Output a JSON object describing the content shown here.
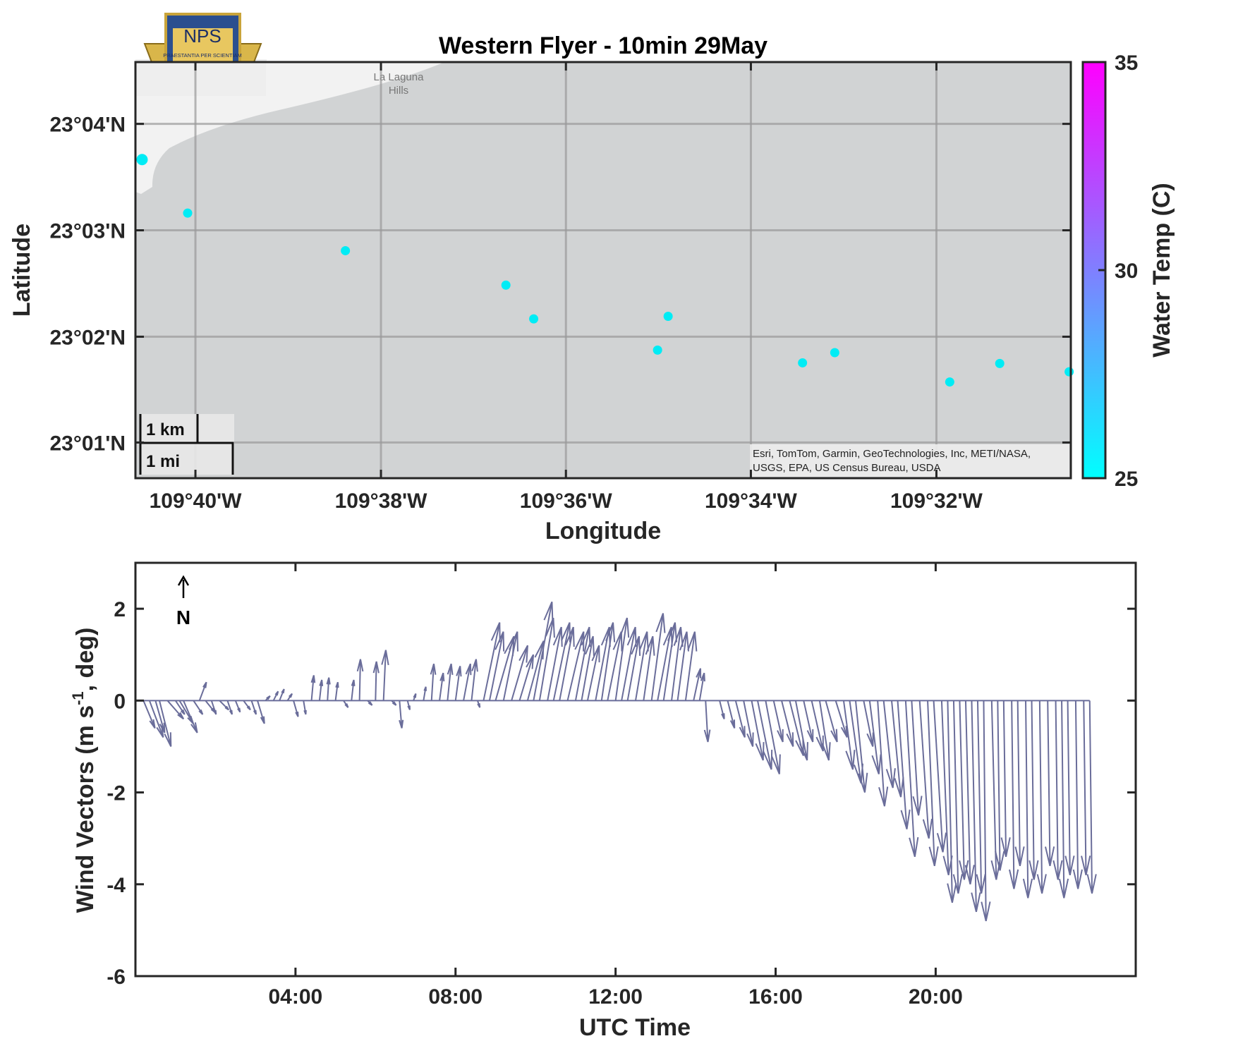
{
  "colors": {
    "map_bg": "#d1d3d4",
    "land": "#f2f2f2",
    "grid": "#9a9a9a",
    "point": "#00ecf5",
    "vector": "#6a6d9a",
    "colormap_low": "#00ffff",
    "colormap_high": "#ff00ff"
  },
  "logo": {
    "text": "NPS",
    "motto": "PRAESTANTIA PER SCIENTIAM"
  },
  "map": {
    "place_name_line1": "La Laguna",
    "place_name_line2": "Hills",
    "attribution_line1": "Esri, TomTom, Garmin, GeoTechnologies, Inc, METI/NASA,",
    "attribution_line2": "USGS, EPA, US Census Bureau, USDA",
    "scale_km": "1 km",
    "scale_mi": "1 mi"
  },
  "chart_data": [
    {
      "type": "scatter",
      "title": "Western Flyer - 10min 29May",
      "xlabel": "Longitude",
      "ylabel": "Latitude",
      "xlim_deg": [
        -109.6775,
        -109.5091
      ],
      "ylim_deg": [
        23.0111,
        23.0764
      ],
      "x_tick_values": [
        -109.6667,
        -109.6333,
        -109.6,
        -109.5667,
        -109.5333
      ],
      "x_tick_labels": [
        "109°40'W",
        "109°38'W",
        "109°36'W",
        "109°34'W",
        "109°32'W"
      ],
      "y_tick_values": [
        23.0667,
        23.05,
        23.0333,
        23.0167
      ],
      "y_tick_labels": [
        "23°04'N",
        "23°03'N",
        "23°02'N",
        "23°01'N"
      ],
      "grid": true,
      "colorbar": {
        "label": "Water Temp (C)",
        "ticks": [
          25,
          30,
          35
        ],
        "range": [
          25,
          35
        ]
      },
      "points": [
        {
          "lon": -109.6763,
          "lat": 23.0611,
          "temp": 25.5
        },
        {
          "lon": -109.6681,
          "lat": 23.0527,
          "temp": 25.3
        },
        {
          "lon": -109.6397,
          "lat": 23.0468,
          "temp": 25.3
        },
        {
          "lon": -109.6108,
          "lat": 23.0414,
          "temp": 25.2
        },
        {
          "lon": -109.6058,
          "lat": 23.0361,
          "temp": 25.3
        },
        {
          "lon": -109.5816,
          "lat": 23.0365,
          "temp": 25.2
        },
        {
          "lon": -109.5835,
          "lat": 23.0312,
          "temp": 25.2
        },
        {
          "lon": -109.5574,
          "lat": 23.0292,
          "temp": 25.2
        },
        {
          "lon": -109.5516,
          "lat": 23.0308,
          "temp": 25.2
        },
        {
          "lon": -109.5309,
          "lat": 23.0262,
          "temp": 25.2
        },
        {
          "lon": -109.5219,
          "lat": 23.0291,
          "temp": 25.1
        },
        {
          "lon": -109.5094,
          "lat": 23.0278,
          "temp": 25.1
        }
      ]
    },
    {
      "type": "quiver",
      "xlabel": "UTC Time",
      "ylabel": "Wind Vectors (m s",
      "ylabel_sup": "-1",
      "ylabel_tail": ", deg)",
      "north_label": "N",
      "xlim_hours": [
        0,
        25
      ],
      "ylim": [
        -6,
        3
      ],
      "x_tick_values": [
        4,
        8,
        12,
        16,
        20
      ],
      "x_tick_labels": [
        "04:00",
        "08:00",
        "12:00",
        "16:00",
        "20:00"
      ],
      "y_tick_values": [
        2,
        0,
        -2,
        -4,
        -6
      ],
      "y_tick_labels": [
        "2",
        "0",
        "-2",
        "-4",
        "-6"
      ],
      "segments": [
        {
          "t0": 0.0,
          "t1": 14.5,
          "v_hi": [
            0.2,
            0.5,
            2.2
          ],
          "v_lo": [
            -1.0,
            -0.2,
            0.0
          ]
        },
        {
          "t0": 14.5,
          "t1": 23.85,
          "v_lo": [
            -0.5,
            -4.8
          ],
          "v_hi": [
            0,
            0
          ]
        }
      ],
      "vectors": [
        {
          "t": 0.2,
          "u": 0.25,
          "v": -0.6
        },
        {
          "t": 0.35,
          "u": 0.3,
          "v": -0.8
        },
        {
          "t": 0.5,
          "u": 0.2,
          "v": -0.7
        },
        {
          "t": 0.6,
          "u": 0.25,
          "v": -1.0
        },
        {
          "t": 0.8,
          "u": 0.35,
          "v": -0.4
        },
        {
          "t": 1.0,
          "u": 0.2,
          "v": -0.3
        },
        {
          "t": 1.1,
          "u": 0.3,
          "v": -0.5
        },
        {
          "t": 1.2,
          "u": 0.3,
          "v": -0.7
        },
        {
          "t": 1.45,
          "u": 0.2,
          "v": -0.3
        },
        {
          "t": 1.6,
          "u": 0.15,
          "v": 0.4
        },
        {
          "t": 1.75,
          "u": 0.2,
          "v": -0.25
        },
        {
          "t": 1.9,
          "u": 0.1,
          "v": -0.3
        },
        {
          "t": 2.1,
          "u": 0.2,
          "v": -0.2
        },
        {
          "t": 2.3,
          "u": 0.1,
          "v": -0.3
        },
        {
          "t": 2.5,
          "u": 0.1,
          "v": -0.25
        },
        {
          "t": 2.7,
          "u": 0.15,
          "v": -0.2
        },
        {
          "t": 2.9,
          "u": 0.1,
          "v": -0.3
        },
        {
          "t": 3.05,
          "u": 0.15,
          "v": -0.5
        },
        {
          "t": 3.25,
          "u": 0.1,
          "v": 0.1
        },
        {
          "t": 3.45,
          "u": 0.1,
          "v": 0.2
        },
        {
          "t": 3.6,
          "u": 0.1,
          "v": 0.25
        },
        {
          "t": 3.8,
          "u": 0.1,
          "v": 0.15
        },
        {
          "t": 3.95,
          "u": 0.1,
          "v": -0.35
        },
        {
          "t": 4.2,
          "u": 0.05,
          "v": -0.3
        },
        {
          "t": 4.4,
          "u": 0.05,
          "v": 0.55
        },
        {
          "t": 4.6,
          "u": 0.05,
          "v": 0.45
        },
        {
          "t": 4.8,
          "u": 0.03,
          "v": 0.5
        },
        {
          "t": 5.0,
          "u": 0.05,
          "v": 0.4
        },
        {
          "t": 5.2,
          "u": 0.1,
          "v": -0.15
        },
        {
          "t": 5.4,
          "u": 0.05,
          "v": 0.45
        },
        {
          "t": 5.6,
          "u": 0.02,
          "v": 0.9
        },
        {
          "t": 5.8,
          "u": 0.1,
          "v": -0.1
        },
        {
          "t": 6.0,
          "u": 0.02,
          "v": 0.85
        },
        {
          "t": 6.2,
          "u": 0.05,
          "v": 1.1
        },
        {
          "t": 6.4,
          "u": 0.1,
          "v": -0.1
        },
        {
          "t": 6.6,
          "u": 0.05,
          "v": -0.6
        },
        {
          "t": 6.8,
          "u": 0.05,
          "v": -0.2
        },
        {
          "t": 6.95,
          "u": 0.05,
          "v": 0.15
        },
        {
          "t": 7.2,
          "u": 0.05,
          "v": 0.3
        },
        {
          "t": 7.4,
          "u": 0.05,
          "v": 0.8
        },
        {
          "t": 7.6,
          "u": 0.08,
          "v": 0.6
        },
        {
          "t": 7.8,
          "u": 0.08,
          "v": 0.8
        },
        {
          "t": 8.0,
          "u": 0.1,
          "v": 0.75
        },
        {
          "t": 8.2,
          "u": 0.15,
          "v": 0.8
        },
        {
          "t": 8.4,
          "u": 0.1,
          "v": 0.9
        },
        {
          "t": 8.55,
          "u": 0.05,
          "v": -0.15
        },
        {
          "t": 8.7,
          "u": 0.35,
          "v": 1.7
        },
        {
          "t": 8.85,
          "u": 0.3,
          "v": 1.5
        },
        {
          "t": 9.0,
          "u": 0.4,
          "v": 1.4
        },
        {
          "t": 9.2,
          "u": 0.3,
          "v": 1.5
        },
        {
          "t": 9.4,
          "u": 0.35,
          "v": 1.2
        },
        {
          "t": 9.6,
          "u": 0.3,
          "v": 1.0
        },
        {
          "t": 9.8,
          "u": 0.35,
          "v": 1.3
        },
        {
          "t": 9.95,
          "u": 0.4,
          "v": 2.15
        },
        {
          "t": 10.1,
          "u": 0.3,
          "v": 1.8
        },
        {
          "t": 10.3,
          "u": 0.3,
          "v": 1.6
        },
        {
          "t": 10.45,
          "u": 0.35,
          "v": 1.7
        },
        {
          "t": 10.6,
          "u": 0.3,
          "v": 1.6
        },
        {
          "t": 10.8,
          "u": 0.35,
          "v": 1.5
        },
        {
          "t": 11.0,
          "u": 0.3,
          "v": 1.6
        },
        {
          "t": 11.15,
          "u": 0.25,
          "v": 1.4
        },
        {
          "t": 11.3,
          "u": 0.25,
          "v": 1.2
        },
        {
          "t": 11.5,
          "u": 0.3,
          "v": 1.6
        },
        {
          "t": 11.65,
          "u": 0.25,
          "v": 1.7
        },
        {
          "t": 11.8,
          "u": 0.3,
          "v": 1.5
        },
        {
          "t": 12.0,
          "u": 0.25,
          "v": 1.8
        },
        {
          "t": 12.15,
          "u": 0.3,
          "v": 1.6
        },
        {
          "t": 12.3,
          "u": 0.25,
          "v": 1.4
        },
        {
          "t": 12.5,
          "u": 0.25,
          "v": 1.5
        },
        {
          "t": 12.7,
          "u": 0.2,
          "v": 1.4
        },
        {
          "t": 12.9,
          "u": 0.25,
          "v": 1.9
        },
        {
          "t": 13.05,
          "u": 0.3,
          "v": 1.6
        },
        {
          "t": 13.2,
          "u": 0.25,
          "v": 1.7
        },
        {
          "t": 13.4,
          "u": 0.2,
          "v": 1.6
        },
        {
          "t": 13.55,
          "u": 0.2,
          "v": 1.5
        },
        {
          "t": 13.75,
          "u": 0.2,
          "v": 1.5
        },
        {
          "t": 13.95,
          "u": 0.15,
          "v": 0.7
        },
        {
          "t": 14.1,
          "u": 0.1,
          "v": 0.6
        },
        {
          "t": 14.25,
          "u": 0.05,
          "v": -0.9
        },
        {
          "t": 14.6,
          "u": 0.1,
          "v": -0.4
        },
        {
          "t": 14.8,
          "u": 0.15,
          "v": -0.6
        },
        {
          "t": 15.0,
          "u": 0.2,
          "v": -0.8
        },
        {
          "t": 15.2,
          "u": 0.2,
          "v": -1.0
        },
        {
          "t": 15.4,
          "u": 0.25,
          "v": -1.3
        },
        {
          "t": 15.55,
          "u": 0.3,
          "v": -1.5
        },
        {
          "t": 15.75,
          "u": 0.3,
          "v": -1.6
        },
        {
          "t": 15.95,
          "u": 0.2,
          "v": -0.9
        },
        {
          "t": 16.15,
          "u": 0.25,
          "v": -1.0
        },
        {
          "t": 16.35,
          "u": 0.3,
          "v": -1.2
        },
        {
          "t": 16.5,
          "u": 0.25,
          "v": -1.3
        },
        {
          "t": 16.7,
          "u": 0.2,
          "v": -0.9
        },
        {
          "t": 16.9,
          "u": 0.25,
          "v": -1.1
        },
        {
          "t": 17.1,
          "u": 0.2,
          "v": -1.3
        },
        {
          "t": 17.25,
          "u": 0.25,
          "v": -0.9
        },
        {
          "t": 17.5,
          "u": 0.25,
          "v": -0.8
        },
        {
          "t": 17.7,
          "u": 0.2,
          "v": -1.5
        },
        {
          "t": 17.85,
          "u": 0.25,
          "v": -1.8
        },
        {
          "t": 18.0,
          "u": 0.2,
          "v": -2.0
        },
        {
          "t": 18.2,
          "u": 0.2,
          "v": -1.0
        },
        {
          "t": 18.35,
          "u": 0.2,
          "v": -1.6
        },
        {
          "t": 18.55,
          "u": 0.15,
          "v": -2.3
        },
        {
          "t": 18.7,
          "u": 0.2,
          "v": -1.9
        },
        {
          "t": 18.9,
          "u": 0.2,
          "v": -2.1
        },
        {
          "t": 19.05,
          "u": 0.2,
          "v": -2.8
        },
        {
          "t": 19.25,
          "u": 0.2,
          "v": -3.4
        },
        {
          "t": 19.4,
          "u": 0.15,
          "v": -2.5
        },
        {
          "t": 19.6,
          "u": 0.2,
          "v": -3.0
        },
        {
          "t": 19.8,
          "u": 0.15,
          "v": -3.6
        },
        {
          "t": 19.95,
          "u": 0.2,
          "v": -3.3
        },
        {
          "t": 20.15,
          "u": 0.15,
          "v": -3.8
        },
        {
          "t": 20.3,
          "u": 0.1,
          "v": -4.4
        },
        {
          "t": 20.45,
          "u": 0.1,
          "v": -4.2
        },
        {
          "t": 20.6,
          "u": 0.1,
          "v": -3.9
        },
        {
          "t": 20.75,
          "u": 0.1,
          "v": -4.0
        },
        {
          "t": 20.9,
          "u": 0.1,
          "v": -4.6
        },
        {
          "t": 21.05,
          "u": 0.08,
          "v": -4.2
        },
        {
          "t": 21.2,
          "u": 0.05,
          "v": -4.8
        },
        {
          "t": 21.4,
          "u": 0.1,
          "v": -3.9
        },
        {
          "t": 21.55,
          "u": 0.05,
          "v": -3.7
        },
        {
          "t": 21.7,
          "u": 0.05,
          "v": -3.4
        },
        {
          "t": 21.9,
          "u": 0.05,
          "v": -4.1
        },
        {
          "t": 22.05,
          "u": 0.05,
          "v": -3.6
        },
        {
          "t": 22.25,
          "u": 0.05,
          "v": -4.3
        },
        {
          "t": 22.4,
          "u": 0.05,
          "v": -3.9
        },
        {
          "t": 22.6,
          "u": 0.05,
          "v": -4.2
        },
        {
          "t": 22.8,
          "u": 0.05,
          "v": -3.6
        },
        {
          "t": 23.0,
          "u": 0.05,
          "v": -3.9
        },
        {
          "t": 23.15,
          "u": 0.05,
          "v": -4.3
        },
        {
          "t": 23.3,
          "u": 0.05,
          "v": -3.8
        },
        {
          "t": 23.5,
          "u": 0.05,
          "v": -4.1
        },
        {
          "t": 23.7,
          "u": 0.05,
          "v": -3.8
        },
        {
          "t": 23.85,
          "u": 0.05,
          "v": -4.2
        }
      ]
    }
  ]
}
